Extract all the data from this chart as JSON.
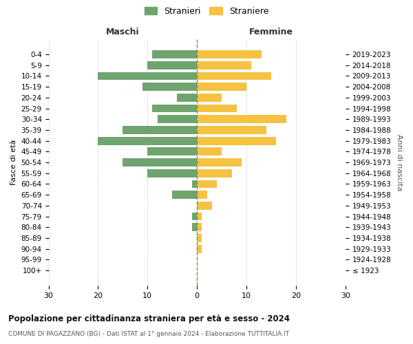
{
  "age_groups": [
    "100+",
    "95-99",
    "90-94",
    "85-89",
    "80-84",
    "75-79",
    "70-74",
    "65-69",
    "60-64",
    "55-59",
    "50-54",
    "45-49",
    "40-44",
    "35-39",
    "30-34",
    "25-29",
    "20-24",
    "15-19",
    "10-14",
    "5-9",
    "0-4"
  ],
  "birth_years": [
    "≤ 1923",
    "1924-1928",
    "1929-1933",
    "1934-1938",
    "1939-1943",
    "1944-1948",
    "1949-1953",
    "1954-1958",
    "1959-1963",
    "1964-1968",
    "1969-1973",
    "1974-1978",
    "1979-1983",
    "1984-1988",
    "1989-1993",
    "1994-1998",
    "1999-2003",
    "2004-2008",
    "2009-2013",
    "2014-2018",
    "2019-2023"
  ],
  "males": [
    0,
    0,
    0,
    0,
    1,
    1,
    0,
    5,
    1,
    10,
    15,
    10,
    20,
    15,
    8,
    9,
    4,
    11,
    20,
    10,
    9
  ],
  "females": [
    0,
    0,
    1,
    1,
    1,
    1,
    3,
    2,
    4,
    7,
    9,
    5,
    16,
    14,
    18,
    8,
    5,
    10,
    15,
    11,
    13
  ],
  "male_color": "#6fa46f",
  "female_color": "#f5c242",
  "grid_color": "#cccccc",
  "title_main": "Popolazione per cittadinanza straniera per età e sesso - 2024",
  "subtitle": "COMUNE DI PAGAZZANO (BG) - Dati ISTAT al 1° gennaio 2024 - Elaborazione TUTTITALIA.IT",
  "xlabel_left": "Maschi",
  "xlabel_right": "Femmine",
  "ylabel_left": "Fasce di età",
  "ylabel_right": "Anni di nascita",
  "legend_male": "Stranieri",
  "legend_female": "Straniere",
  "xlim": 30,
  "background_color": "#ffffff",
  "dashed_line_color": "#888844"
}
